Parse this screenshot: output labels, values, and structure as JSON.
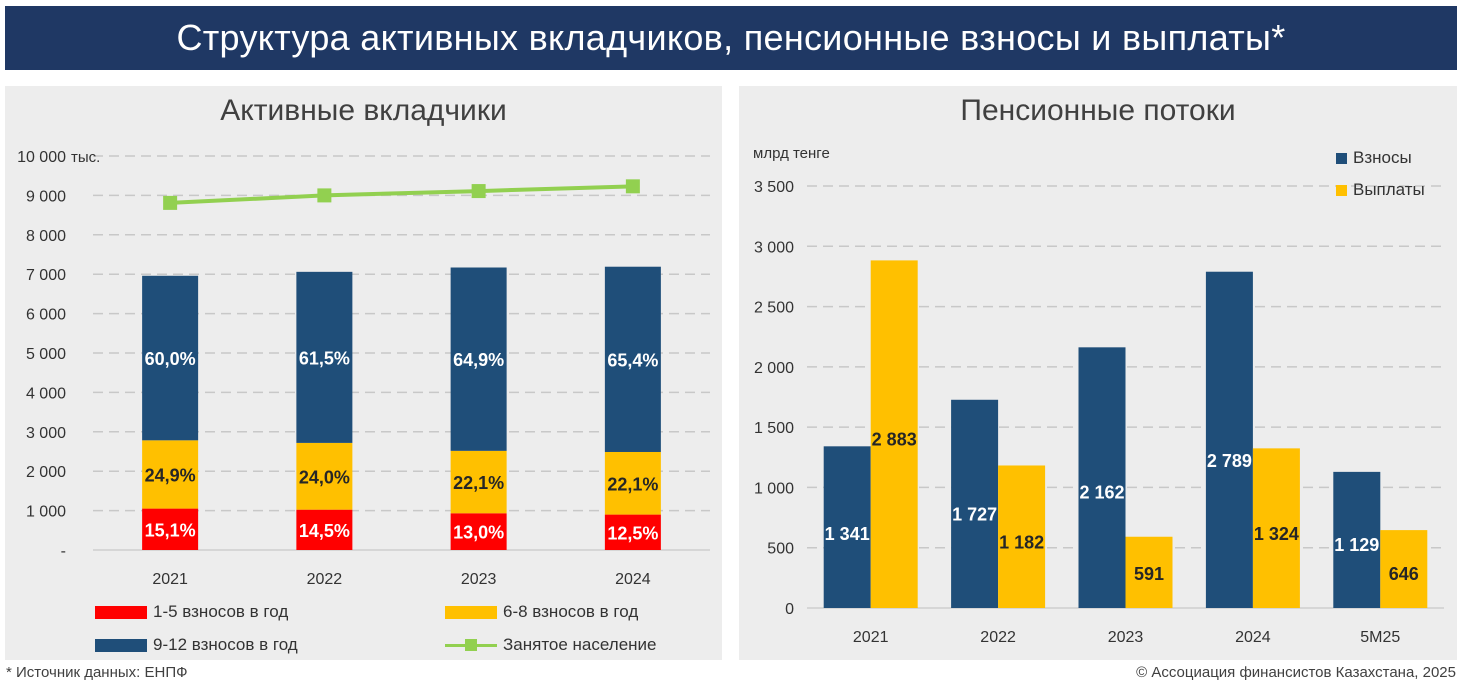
{
  "header": {
    "title": "Структура активных вкладчиков, пенсионные взносы и выплаты*"
  },
  "footer": {
    "source": "* Источник данных: ЕНПФ",
    "copyright": "© Ассоциация финансистов Казахстана, 2025"
  },
  "colors": {
    "header_bg": "#1f3864",
    "red": "#ff0000",
    "yellow": "#ffc000",
    "navy": "#1f4e79",
    "green": "#92d050"
  },
  "chart_data": [
    {
      "type": "bar",
      "stacked": true,
      "title": "Активные вкладчики",
      "unit_label": "тыс.",
      "ylim": [
        0,
        10000
      ],
      "yticks": [
        "-",
        "1 000",
        "2 000",
        "3 000",
        "4 000",
        "5 000",
        "6 000",
        "7 000",
        "8 000",
        "9 000",
        "10 000"
      ],
      "grid": true,
      "categories": [
        "2021",
        "2022",
        "2023",
        "2024"
      ],
      "totals": [
        6960,
        7060,
        7170,
        7190
      ],
      "series": [
        {
          "name": "1-5 взносов в год",
          "color": "#ff0000",
          "shares": [
            15.1,
            14.5,
            13.0,
            12.5
          ],
          "labels": [
            "15,1%",
            "14,5%",
            "13,0%",
            "12,5%"
          ]
        },
        {
          "name": "6-8 взносов в год",
          "color": "#ffc000",
          "shares": [
            24.9,
            24.0,
            22.1,
            22.1
          ],
          "labels": [
            "24,9%",
            "24,0%",
            "22,1%",
            "22,1%"
          ]
        },
        {
          "name": "9-12 взносов в год",
          "color": "#1f4e79",
          "shares": [
            60.0,
            61.5,
            64.9,
            65.4
          ],
          "labels": [
            "60,0%",
            "61,5%",
            "64,9%",
            "65,4%"
          ]
        }
      ],
      "line": {
        "name": "Занятое население",
        "color": "#92d050",
        "values": [
          8810,
          9000,
          9110,
          9230
        ]
      },
      "legend_position": "bottom"
    },
    {
      "type": "bar",
      "title": "Пенсионные потоки",
      "unit_label": "млрд тенге",
      "ylim": [
        0,
        3500
      ],
      "yticks": [
        "0",
        "500",
        "1 000",
        "1 500",
        "2 000",
        "2 500",
        "3 000",
        "3 500"
      ],
      "grid": true,
      "categories": [
        "2021",
        "2022",
        "2023",
        "2024",
        "5М25"
      ],
      "series": [
        {
          "name": "Взносы",
          "color": "#1f4e79",
          "values": [
            1341,
            1727,
            2162,
            2789,
            1129
          ],
          "labels": [
            "1 341",
            "1 727",
            "2 162",
            "2 789",
            "1 129"
          ]
        },
        {
          "name": "Выплаты",
          "color": "#ffc000",
          "values": [
            2883,
            1182,
            591,
            1324,
            646
          ],
          "labels": [
            "2 883",
            "1 182",
            "591",
            "1 324",
            "646"
          ]
        }
      ],
      "legend_position": "top-right"
    }
  ]
}
